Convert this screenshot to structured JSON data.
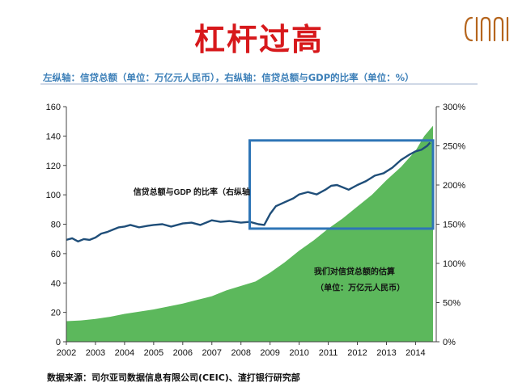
{
  "header": {
    "title": "杠杆过高",
    "subtitle": "左纵轴：信贷总额（单位：万亿元人民币），右纵轴：信贷总额与GDP的比率（单位：%）"
  },
  "footer": {
    "source": "数据来源：司尔亚司数据信息有限公司(CEIC)、渣打银行研究部"
  },
  "colors": {
    "title": "#d7191c",
    "subtitle": "#3c7fb8",
    "area": "#5cb85c",
    "line": "#1f4e79",
    "highlight_box": "#2e75b6",
    "logo": "#b5651d"
  },
  "chart_data": {
    "type": "line",
    "x_ticks": [
      "2002",
      "2003",
      "2004",
      "2005",
      "2006",
      "2007",
      "2008",
      "2009",
      "2010",
      "2011",
      "2012",
      "2013",
      "2014"
    ],
    "xlim": [
      2002,
      2014.6
    ],
    "ylim_left": [
      0,
      160
    ],
    "yticks_left": [
      "0",
      "20",
      "40",
      "60",
      "80",
      "100",
      "120",
      "140",
      "160"
    ],
    "ylim_right": [
      0,
      300
    ],
    "yticks_right": [
      "0%",
      "50%",
      "100%",
      "150%",
      "200%",
      "250%",
      "300%"
    ],
    "grid": false,
    "series": [
      {
        "name": "我们对信贷总额的估算",
        "axis": "left",
        "style": "area",
        "x": [
          2002,
          2002.5,
          2003,
          2003.5,
          2004,
          2004.5,
          2005,
          2005.5,
          2006,
          2006.5,
          2007,
          2007.5,
          2008,
          2008.5,
          2009,
          2009.5,
          2010,
          2010.5,
          2011,
          2011.5,
          2012,
          2012.5,
          2013,
          2013.5,
          2014,
          2014.3,
          2014.6
        ],
        "values": [
          14,
          14.5,
          15.5,
          17,
          19,
          20.5,
          22,
          24,
          26,
          28.5,
          31,
          35,
          38,
          41,
          47,
          54,
          62,
          69,
          77,
          84,
          92,
          100,
          110,
          119,
          130,
          140,
          147
        ]
      },
      {
        "name": "信贷总额与GDP 的比率（右纵轴）",
        "axis": "right",
        "style": "line",
        "x": [
          2002,
          2002.2,
          2002.4,
          2002.6,
          2002.8,
          2003,
          2003.2,
          2003.4,
          2003.6,
          2003.8,
          2004,
          2004.2,
          2004.5,
          2004.8,
          2005,
          2005.3,
          2005.6,
          2006,
          2006.3,
          2006.6,
          2007,
          2007.3,
          2007.6,
          2008,
          2008.3,
          2008.6,
          2008.8,
          2009,
          2009.2,
          2009.5,
          2009.8,
          2010,
          2010.3,
          2010.6,
          2010.9,
          2011.1,
          2011.3,
          2011.5,
          2011.7,
          2012,
          2012.3,
          2012.6,
          2012.9,
          2013.2,
          2013.5,
          2013.8,
          2014,
          2014.2,
          2014.4,
          2014.5
        ],
        "values": [
          130,
          132,
          128,
          131,
          130,
          133,
          138,
          140,
          143,
          146,
          147,
          149,
          146,
          148,
          149,
          150,
          147,
          151,
          152,
          149,
          155,
          153,
          154,
          152,
          153,
          150,
          149,
          163,
          173,
          178,
          183,
          188,
          191,
          188,
          194,
          199,
          200,
          197,
          194,
          200,
          205,
          212,
          215,
          222,
          232,
          239,
          243,
          245,
          250,
          254
        ]
      }
    ],
    "annotations": [
      {
        "text": "信贷总额与GDP 的比率（右纵轴",
        "x": 2004.3,
        "y_left": 100
      },
      {
        "text": "我们对信贷总额的估算",
        "x": 2011.9,
        "y_left": 46
      },
      {
        "text": "（单位：万亿元人民币）",
        "x": 2012.1,
        "y_left": 35
      }
    ],
    "highlight_box": {
      "x0": 2008.3,
      "x1": 2014.6,
      "y0_left": 77,
      "y1_left": 137
    }
  }
}
